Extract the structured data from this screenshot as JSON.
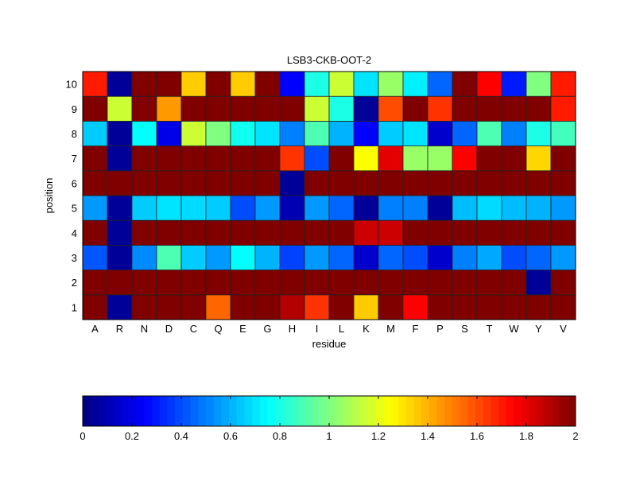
{
  "chart_data": {
    "type": "heatmap",
    "title": "LSB3-CKB-OOT-2",
    "xlabel": "residue",
    "ylabel": "position",
    "x_categories": [
      "A",
      "R",
      "N",
      "D",
      "C",
      "Q",
      "E",
      "G",
      "H",
      "I",
      "L",
      "K",
      "M",
      "F",
      "P",
      "S",
      "T",
      "W",
      "Y",
      "V"
    ],
    "y_categories": [
      "1",
      "2",
      "3",
      "4",
      "5",
      "6",
      "7",
      "8",
      "9",
      "10"
    ],
    "values_by_position": {
      "10": [
        1.7,
        0.05,
        2,
        2,
        1.35,
        2,
        1.35,
        2,
        0.25,
        0.8,
        1.15,
        0.7,
        1.05,
        0.72,
        0.45,
        2,
        1.75,
        0.3,
        1.0,
        1.7
      ],
      "9": [
        2,
        1.15,
        2,
        1.45,
        2,
        2,
        2,
        2,
        2,
        1.15,
        0.8,
        0.05,
        1.6,
        2,
        1.65,
        2,
        2,
        2,
        2,
        1.7
      ],
      "8": [
        0.65,
        0.05,
        0.75,
        0.2,
        1.15,
        1.0,
        0.78,
        0.7,
        0.5,
        0.9,
        0.6,
        0.25,
        0.65,
        0.7,
        0.15,
        0.45,
        0.9,
        0.5,
        0.8,
        0.88
      ],
      "7": [
        2,
        0.05,
        2,
        2,
        2,
        2,
        2,
        2,
        1.65,
        0.4,
        2,
        1.25,
        1.8,
        1.05,
        1.05,
        1.75,
        2,
        2,
        1.33,
        2
      ],
      "6": [
        2,
        2,
        2,
        2,
        2,
        2,
        2,
        2,
        0.05,
        2,
        2,
        2,
        2,
        2,
        2,
        2,
        2,
        2,
        2,
        2
      ],
      "5": [
        0.55,
        0.05,
        0.65,
        0.7,
        0.68,
        0.65,
        0.4,
        0.55,
        0.1,
        0.55,
        0.45,
        0.05,
        0.5,
        0.5,
        0.05,
        0.62,
        0.68,
        0.62,
        0.6,
        0.55
      ],
      "4": [
        2,
        0.05,
        2,
        2,
        2,
        2,
        2,
        2,
        2,
        2,
        2,
        1.85,
        1.85,
        2,
        2,
        2,
        2,
        2,
        2,
        2
      ],
      "3": [
        0.42,
        0.05,
        0.52,
        0.9,
        0.65,
        0.55,
        0.75,
        0.6,
        0.38,
        0.55,
        0.45,
        0.15,
        0.45,
        0.4,
        0.15,
        0.5,
        0.58,
        0.4,
        0.45,
        0.55
      ],
      "2": [
        2,
        2,
        2,
        2,
        2,
        2,
        2,
        2,
        2,
        2,
        2,
        2,
        2,
        2,
        2,
        2,
        2,
        2,
        0.05,
        2
      ],
      "1": [
        2,
        0.05,
        2,
        2,
        2,
        1.55,
        2,
        2,
        1.9,
        1.65,
        2,
        1.35,
        2,
        1.75,
        2,
        2,
        2,
        2,
        2,
        2
      ]
    },
    "colormap": "jet",
    "clim": [
      0,
      2
    ],
    "colorbar": {
      "placement": "bottom",
      "ticks": [
        "0",
        "0.2",
        "0.4",
        "0.6",
        "0.8",
        "1",
        "1.2",
        "1.4",
        "1.6",
        "1.8",
        "2"
      ]
    }
  }
}
